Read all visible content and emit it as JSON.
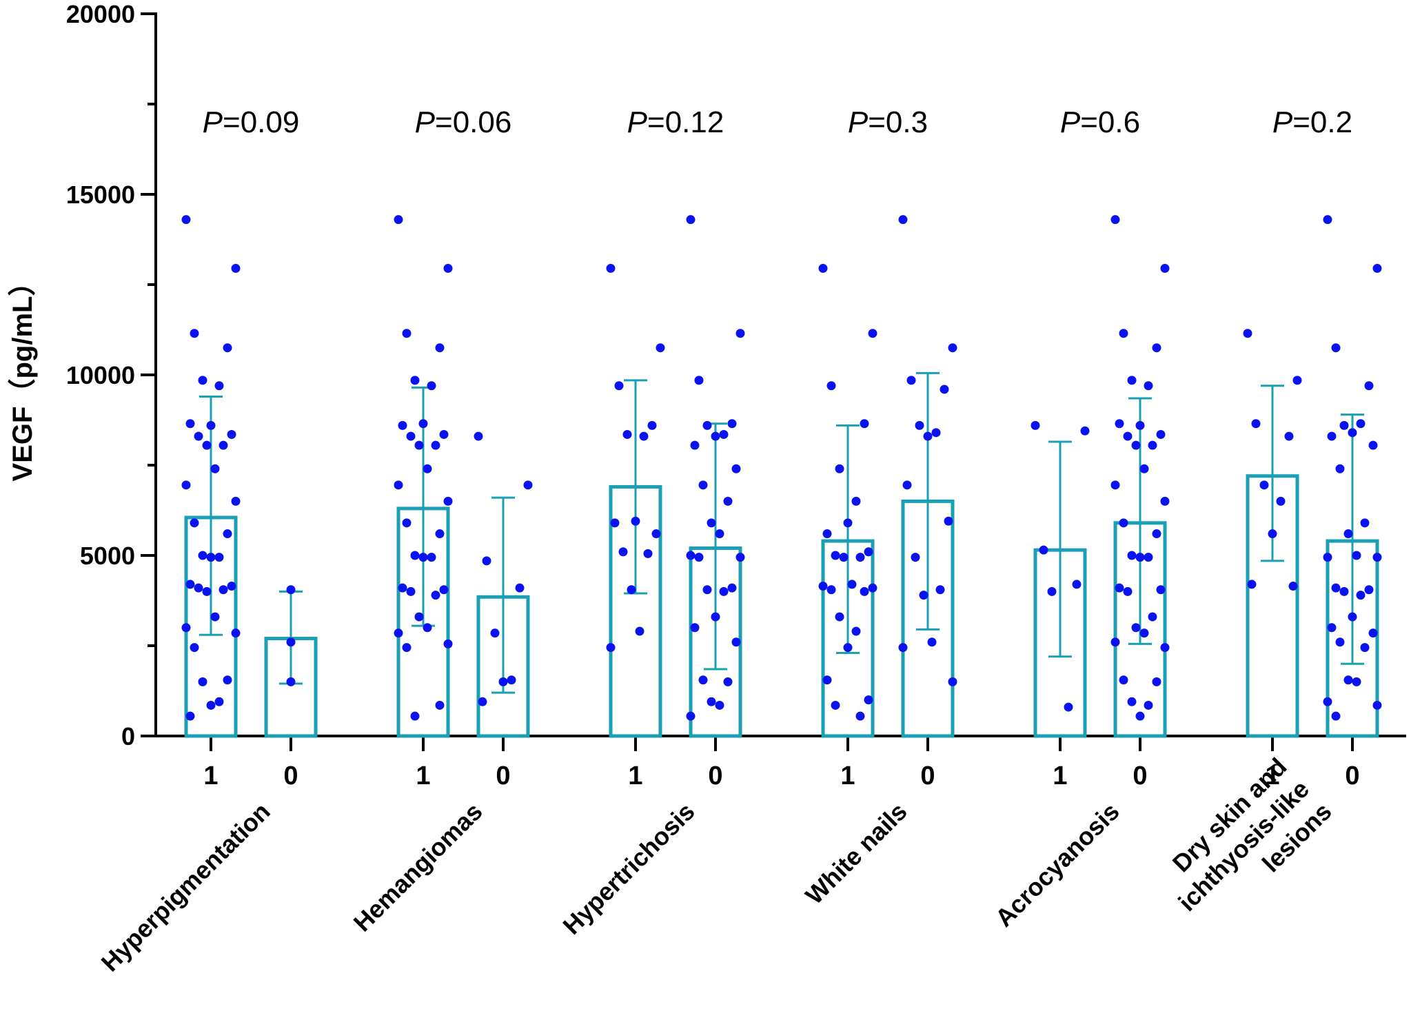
{
  "chart_data": {
    "type": "bar",
    "title": "",
    "ylabel": "VEGF（pg/mL）",
    "xlabel": "",
    "ylim": [
      0,
      20000
    ],
    "yticks": [
      0,
      5000,
      10000,
      15000,
      20000
    ],
    "ytick_labels": [
      "0",
      "5000",
      "10000",
      "15000",
      "20000"
    ],
    "colors": {
      "bar": "#1aa0b4",
      "point": "#0a12ee",
      "axis": "#000000"
    },
    "groups": [
      {
        "label": "Hyperpigmentation",
        "p_prefix": "P",
        "p_value": "=0.09",
        "bars": [
          {
            "category": "1",
            "mean": 6050,
            "sd_low": 2800,
            "sd_high": 9400,
            "points": [
              14300,
              12950,
              11150,
              10750,
              9850,
              9700,
              8600,
              8650,
              8350,
              8300,
              8050,
              8050,
              7400,
              6950,
              6500,
              5900,
              5600,
              5000,
              4950,
              4950,
              4200,
              4150,
              4100,
              4050,
              4000,
              3300,
              3000,
              2850,
              2450,
              1550,
              1500,
              950,
              850,
              550
            ]
          },
          {
            "category": "0",
            "mean": 2700,
            "sd_low": 1450,
            "sd_high": 4000,
            "points": [
              4050,
              2600,
              1500
            ]
          }
        ]
      },
      {
        "label": "Hemangiomas",
        "p_prefix": "P",
        "p_value": "=0.06",
        "bars": [
          {
            "category": "1",
            "mean": 6300,
            "sd_low": 3050,
            "sd_high": 9650,
            "points": [
              14300,
              12950,
              11150,
              10750,
              9850,
              9700,
              8650,
              8600,
              8350,
              8300,
              8050,
              8050,
              7400,
              6950,
              6500,
              5900,
              5600,
              5000,
              4950,
              4950,
              4100,
              4050,
              4000,
              3900,
              3300,
              3000,
              2850,
              2550,
              2450,
              850,
              550
            ]
          },
          {
            "category": "0",
            "mean": 3850,
            "sd_low": 1200,
            "sd_high": 6600,
            "points": [
              8300,
              6950,
              4850,
              4100,
              2850,
              1550,
              1500,
              950
            ]
          }
        ]
      },
      {
        "label": "Hypertrichosis",
        "p_prefix": "P",
        "p_value": "=0.12",
        "bars": [
          {
            "category": "1",
            "mean": 6900,
            "sd_low": 3950,
            "sd_high": 9850,
            "points": [
              12950,
              10750,
              9700,
              8600,
              8350,
              8300,
              5950,
              5900,
              5600,
              5100,
              5050,
              4050,
              2900,
              2450
            ]
          },
          {
            "category": "0",
            "mean": 5200,
            "sd_low": 1850,
            "sd_high": 8650,
            "points": [
              14300,
              11150,
              9850,
              8650,
              8600,
              8350,
              8300,
              8050,
              7400,
              6950,
              6500,
              5900,
              5600,
              5000,
              4950,
              4950,
              4100,
              4050,
              4000,
              3300,
              3000,
              2600,
              1550,
              1500,
              950,
              850,
              550
            ]
          }
        ]
      },
      {
        "label": "White nails",
        "p_prefix": "P",
        "p_value": "=0.3",
        "bars": [
          {
            "category": "1",
            "mean": 5400,
            "sd_low": 2300,
            "sd_high": 8600,
            "points": [
              12950,
              11150,
              9700,
              8650,
              7400,
              6500,
              5900,
              5600,
              5100,
              5000,
              4950,
              4950,
              4200,
              4150,
              4100,
              4050,
              4000,
              3300,
              2900,
              2450,
              1550,
              1000,
              850,
              550
            ]
          },
          {
            "category": "0",
            "mean": 6500,
            "sd_low": 2950,
            "sd_high": 10050,
            "points": [
              14300,
              10750,
              9850,
              9600,
              8600,
              8400,
              8300,
              6950,
              5950,
              4950,
              4050,
              3900,
              2600,
              2450,
              1500
            ]
          }
        ]
      },
      {
        "label": "Acrocyanosis",
        "p_prefix": "P",
        "p_value": "=0.6",
        "bars": [
          {
            "category": "1",
            "mean": 5150,
            "sd_low": 2200,
            "sd_high": 8150,
            "points": [
              8600,
              8450,
              5150,
              4200,
              4000,
              800
            ]
          },
          {
            "category": "0",
            "mean": 5900,
            "sd_low": 2550,
            "sd_high": 9350,
            "points": [
              14300,
              12950,
              11150,
              10750,
              9850,
              9700,
              8600,
              8650,
              8350,
              8300,
              8050,
              8050,
              7400,
              6950,
              6500,
              5900,
              5600,
              5000,
              4950,
              4950,
              4100,
              4050,
              4000,
              3300,
              3000,
              2850,
              2600,
              2450,
              1550,
              1500,
              950,
              850,
              550
            ]
          }
        ]
      },
      {
        "label": "Dry skin and ichthyosis-like lesions",
        "label_lines": [
          "Dry skin and",
          "ichthyosis-like",
          "lesions"
        ],
        "p_prefix": "P",
        "p_value": "=0.2",
        "bars": [
          {
            "category": "1",
            "mean": 7200,
            "sd_low": 4850,
            "sd_high": 9700,
            "points": [
              11150,
              9850,
              8650,
              8300,
              6950,
              6500,
              5600,
              4200,
              4150
            ]
          },
          {
            "category": "0",
            "mean": 5400,
            "sd_low": 2000,
            "sd_high": 8900,
            "points": [
              14300,
              12950,
              10750,
              9700,
              8600,
              8650,
              8400,
              8300,
              8050,
              7400,
              5900,
              5600,
              5000,
              4950,
              4950,
              4100,
              4050,
              4000,
              3900,
              3300,
              3000,
              2850,
              2600,
              2450,
              1550,
              1500,
              950,
              850,
              550
            ]
          }
        ]
      }
    ]
  }
}
